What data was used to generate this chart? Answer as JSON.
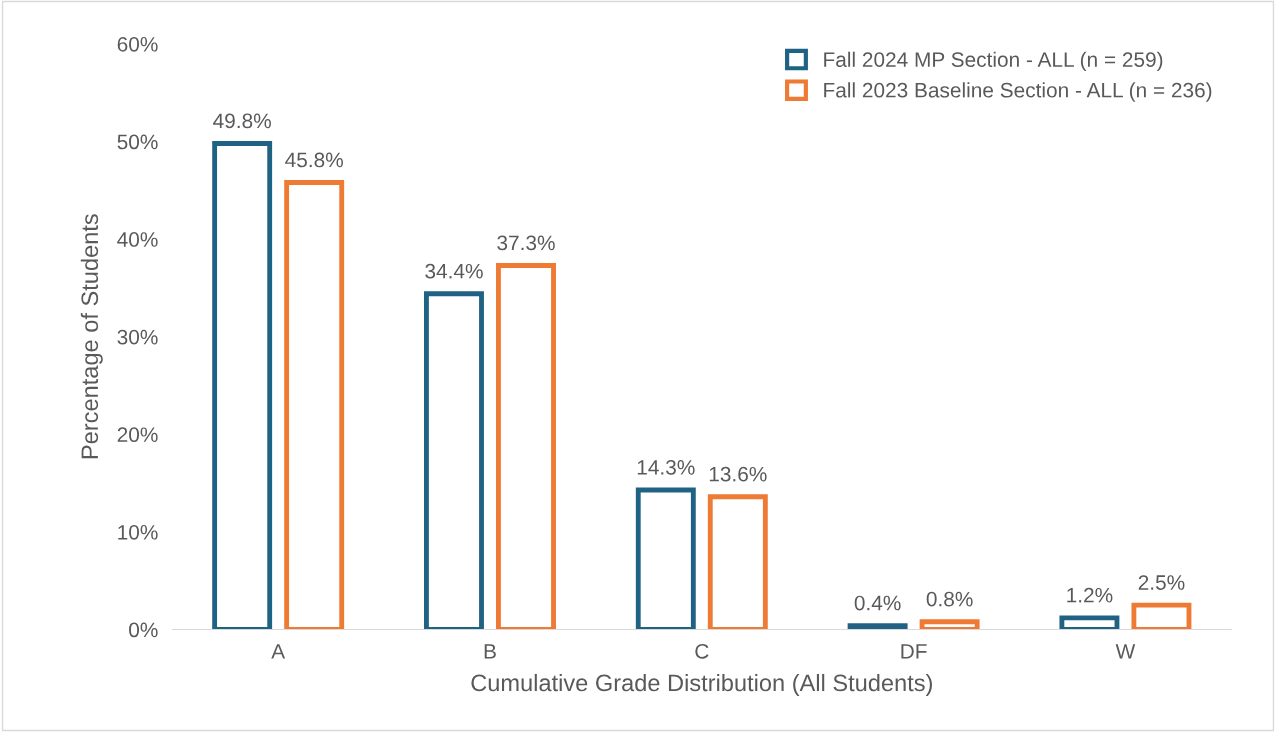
{
  "chart_data": {
    "type": "bar",
    "xlabel": "Cumulative Grade Distribution (All Students)",
    "ylabel": "Percentage of Students",
    "categories": [
      "A",
      "B",
      "C",
      "DF",
      "W"
    ],
    "series": [
      {
        "name": "Fall 2024 MP Section - ALL (n = 259)",
        "color": "#1f6284",
        "values": [
          49.8,
          34.4,
          14.3,
          0.4,
          1.2
        ],
        "value_labels": [
          "49.8%",
          "34.4%",
          "14.3%",
          "0.4%",
          "1.2%"
        ]
      },
      {
        "name": "Fall 2023 Baseline Section - ALL (n = 236)",
        "color": "#ee7a34",
        "values": [
          45.8,
          37.3,
          13.6,
          0.8,
          2.5
        ],
        "value_labels": [
          "45.8%",
          "37.3%",
          "13.6%",
          "0.8%",
          "2.5%"
        ]
      }
    ],
    "ylim": [
      0,
      60
    ],
    "yticks": [
      {
        "value": 0,
        "label": "0%"
      },
      {
        "value": 10,
        "label": "10%"
      },
      {
        "value": 20,
        "label": "20%"
      },
      {
        "value": 30,
        "label": "30%"
      },
      {
        "value": 40,
        "label": "40%"
      },
      {
        "value": 50,
        "label": "50%"
      },
      {
        "value": 60,
        "label": "60%"
      }
    ],
    "grid": false,
    "legend": "top right"
  }
}
